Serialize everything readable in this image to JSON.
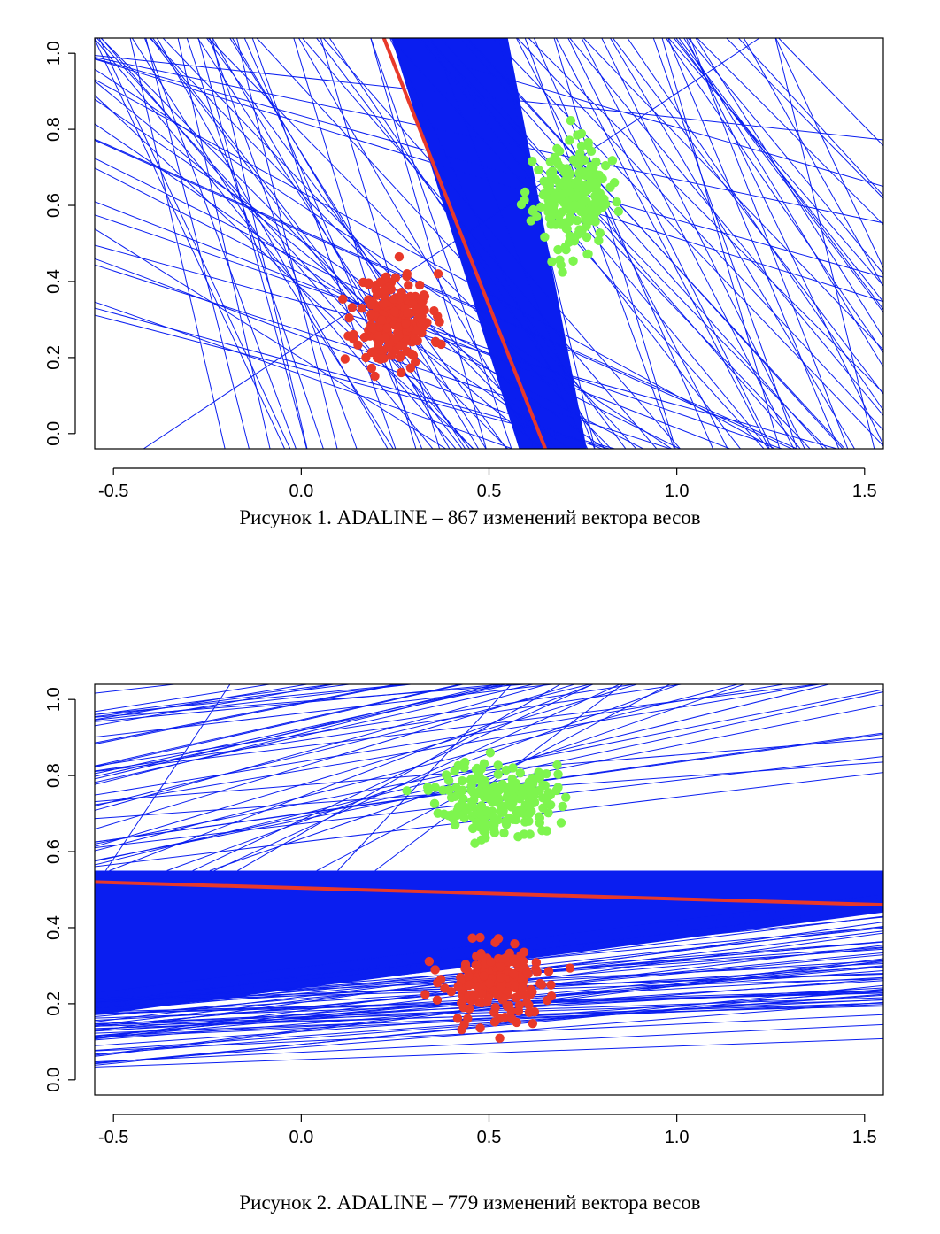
{
  "chart_data": [
    {
      "type": "scatter",
      "caption": "Рисунок 1. ADALINE – 867 изменений вектора весов",
      "xlim": [
        -0.55,
        1.55
      ],
      "ylim": [
        -0.04,
        1.04
      ],
      "x_ticks": [
        -0.5,
        0.0,
        0.5,
        1.0,
        1.5
      ],
      "x_tick_labels": [
        "-0.5",
        "0.0",
        "0.5",
        "1.0",
        "1.5"
      ],
      "y_ticks": [
        0.0,
        0.2,
        0.4,
        0.6,
        0.8,
        1.0
      ],
      "y_tick_labels": [
        "0.0",
        "0.2",
        "0.4",
        "0.6",
        "0.8",
        "1.0"
      ],
      "grid": false,
      "final_boundary": {
        "x1": 0.22,
        "y1": 1.04,
        "x2": 0.65,
        "y2": -0.04,
        "color": "#e8392a"
      },
      "iteration_lines": {
        "color": "#0a1ef0",
        "band": [
          [
            0.24,
            1.04
          ],
          [
            0.55,
            1.04
          ],
          [
            0.76,
            -0.04
          ],
          [
            0.58,
            -0.04
          ]
        ]
      },
      "series": [
        {
          "color": "#e8392a",
          "center": [
            0.25,
            0.3
          ],
          "spread": [
            0.09,
            0.11
          ],
          "count": 220,
          "seed": 11
        },
        {
          "color": "#7ef54e",
          "center": [
            0.72,
            0.62
          ],
          "spread": [
            0.09,
            0.12
          ],
          "count": 220,
          "seed": 23
        }
      ]
    },
    {
      "type": "scatter",
      "caption": "Рисунок 2. ADALINE – 779 изменений вектора весов",
      "xlim": [
        -0.55,
        1.55
      ],
      "ylim": [
        -0.04,
        1.04
      ],
      "x_ticks": [
        -0.5,
        0.0,
        0.5,
        1.0,
        1.5
      ],
      "x_tick_labels": [
        "-0.5",
        "0.0",
        "0.5",
        "1.0",
        "1.5"
      ],
      "y_ticks": [
        0.0,
        0.2,
        0.4,
        0.6,
        0.8,
        1.0
      ],
      "y_tick_labels": [
        "0.0",
        "0.2",
        "0.4",
        "0.6",
        "0.8",
        "1.0"
      ],
      "grid": false,
      "final_boundary": {
        "x1": -0.55,
        "y1": 0.52,
        "x2": 1.55,
        "y2": 0.46,
        "color": "#e8392a"
      },
      "iteration_lines": {
        "color": "#0a1ef0",
        "band": [
          [
            -0.55,
            0.55
          ],
          [
            1.55,
            0.55
          ],
          [
            1.55,
            0.8
          ],
          [
            1.55,
            0.44
          ],
          [
            -0.55,
            0.17
          ]
        ]
      },
      "series": [
        {
          "color": "#7ef54e",
          "center": [
            0.52,
            0.74
          ],
          "spread": [
            0.14,
            0.09
          ],
          "count": 220,
          "seed": 37
        },
        {
          "color": "#e8392a",
          "center": [
            0.52,
            0.25
          ],
          "spread": [
            0.13,
            0.09
          ],
          "count": 220,
          "seed": 53
        }
      ]
    }
  ]
}
